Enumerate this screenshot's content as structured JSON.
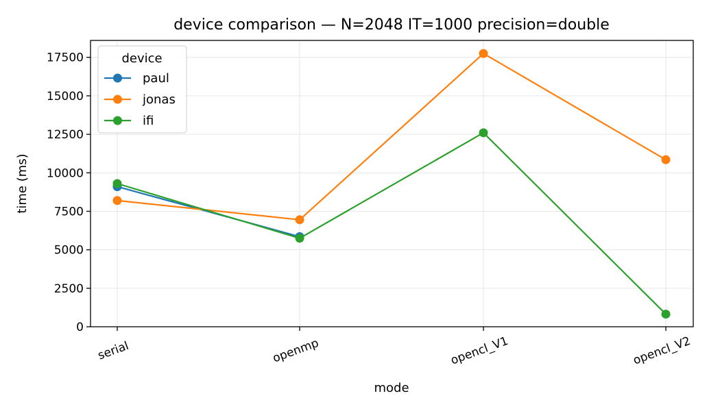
{
  "chart_data": {
    "type": "line",
    "title": "device comparison — N=2048 IT=1000 precision=double",
    "xlabel": "mode",
    "ylabel": "time (ms)",
    "categories": [
      "serial",
      "openmp",
      "opencl_V1",
      "opencl_V2"
    ],
    "ylim": [
      0,
      18600
    ],
    "yticks": [
      0,
      2500,
      5000,
      7500,
      10000,
      12500,
      15000,
      17500
    ],
    "ytick_labels": [
      "0",
      "2500",
      "5000",
      "7500",
      "10000",
      "12500",
      "15000",
      "17500"
    ],
    "grid": true,
    "legend": {
      "title": "device",
      "position": "top-left"
    },
    "series": [
      {
        "name": "paul",
        "color": "#1f77b4",
        "values": [
          9100,
          5850,
          null,
          null
        ]
      },
      {
        "name": "jonas",
        "color": "#ff7f0e",
        "values": [
          8200,
          6950,
          17750,
          10850
        ]
      },
      {
        "name": "ifi",
        "color": "#2ca02c",
        "values": [
          9300,
          5750,
          12600,
          820
        ]
      }
    ]
  }
}
